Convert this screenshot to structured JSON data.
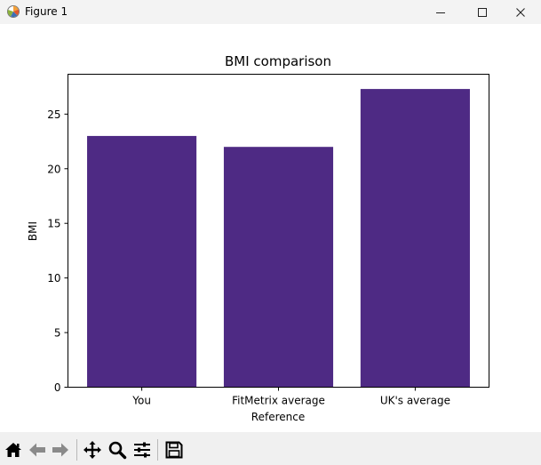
{
  "window": {
    "title": "Figure 1"
  },
  "toolbar": {
    "buttons": [
      {
        "name": "home-icon",
        "tip": "Reset original view"
      },
      {
        "name": "back-arrow-icon",
        "tip": "Back to previous view"
      },
      {
        "name": "forward-arrow-icon",
        "tip": "Forward to next view"
      },
      {
        "name": "pan-move-icon",
        "tip": "Pan axes"
      },
      {
        "name": "zoom-magnifier-icon",
        "tip": "Zoom to rectangle"
      },
      {
        "name": "configure-subplots-icon",
        "tip": "Configure subplots"
      },
      {
        "name": "save-floppy-icon",
        "tip": "Save the figure"
      }
    ]
  },
  "chart_data": {
    "type": "bar",
    "title": "BMI comparison",
    "xlabel": "Reference",
    "ylabel": "BMI",
    "categories": [
      "You",
      "FitMetrix average",
      "UK's average"
    ],
    "values": [
      23.0,
      22.0,
      27.3
    ],
    "yticks": [
      0,
      5,
      10,
      15,
      20,
      25
    ],
    "ylim": [
      0,
      28.65
    ],
    "bar_color": "#4e2a84",
    "grid": false,
    "legend": "none"
  }
}
